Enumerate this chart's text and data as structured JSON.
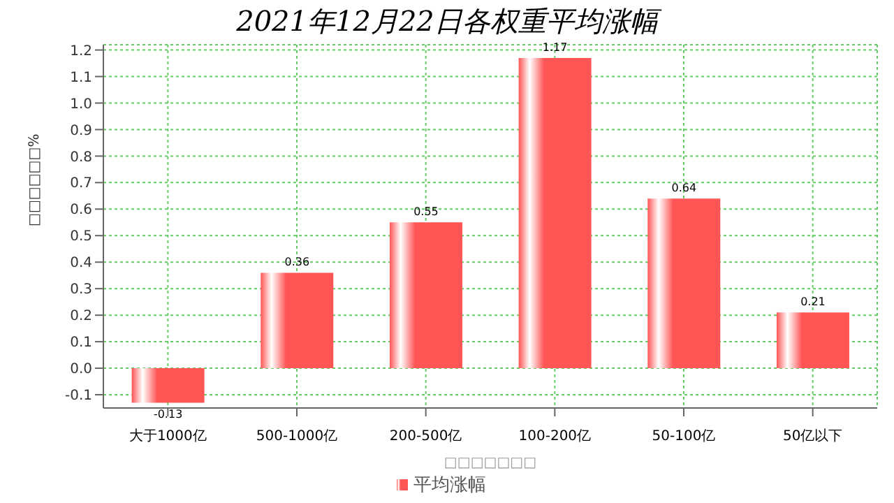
{
  "chart_data": {
    "type": "bar",
    "title": "2021年12月22日各权重平均涨幅",
    "xlabel": "□□□□□□□",
    "ylabel": "□□□□□□%",
    "categories": [
      "大于1000亿",
      "500-1000亿",
      "200-500亿",
      "100-200亿",
      "50-100亿",
      "50亿以下"
    ],
    "series": [
      {
        "name": "平均涨幅",
        "color": "#ff5555",
        "values": [
          -0.13,
          0.36,
          0.55,
          1.17,
          0.64,
          0.21
        ]
      }
    ],
    "ylim": [
      -0.15,
      1.22
    ],
    "yticks": [
      {
        "value": -0.1,
        "label": "-0.1"
      },
      {
        "value": 0,
        "label": "0.0"
      },
      {
        "value": 0.1,
        "label": "0.1"
      },
      {
        "value": 0.2,
        "label": "0.2"
      },
      {
        "value": 0.3,
        "label": "0.3"
      },
      {
        "value": 0.4,
        "label": "0.4"
      },
      {
        "value": 0.5,
        "label": "0.5"
      },
      {
        "value": 0.6,
        "label": "0.6"
      },
      {
        "value": 0.7,
        "label": "0.7"
      },
      {
        "value": 0.8,
        "label": "0.8"
      },
      {
        "value": 0.9,
        "label": "0.9"
      },
      {
        "value": 1,
        "label": "1.0"
      },
      {
        "value": 1.1,
        "label": "1.1"
      },
      {
        "value": 1.2,
        "label": "1.2"
      }
    ],
    "grid": true,
    "legend": "bottom",
    "data_labels": true
  }
}
